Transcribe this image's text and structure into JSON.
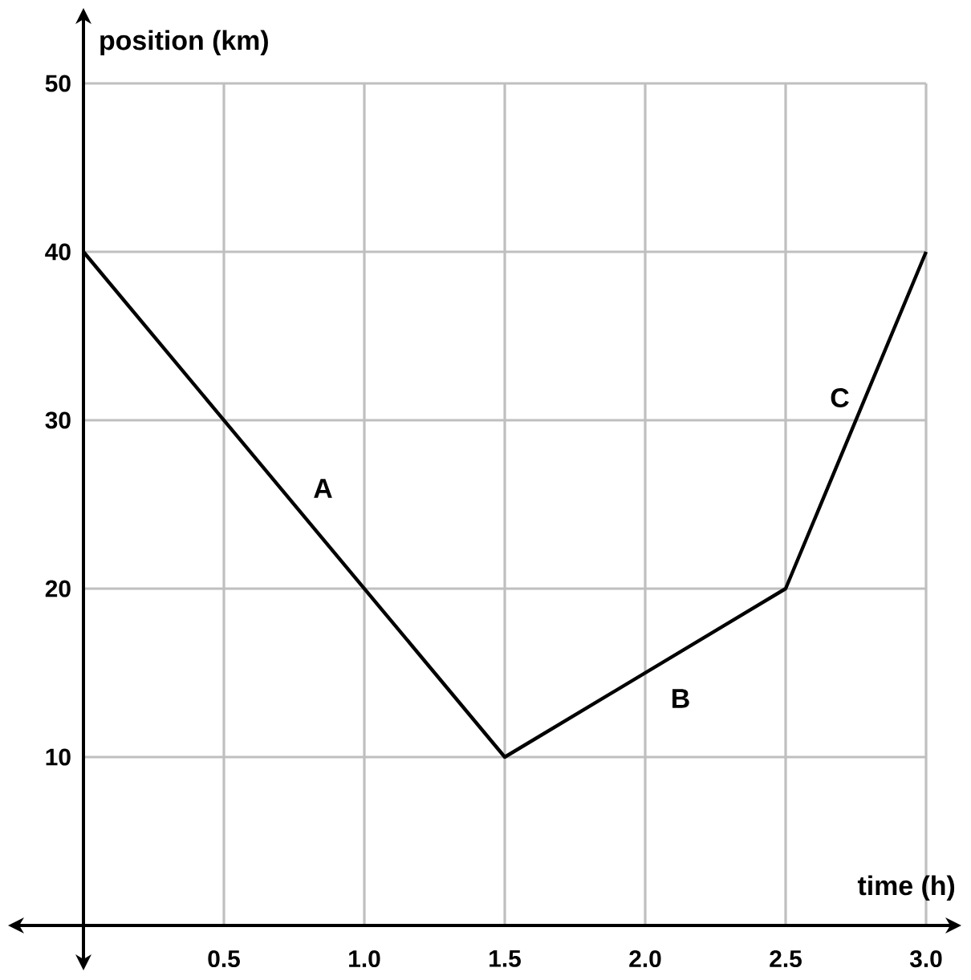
{
  "chart_data": {
    "type": "line",
    "xlabel": "time (h)",
    "ylabel": "position (km)",
    "x": [
      0,
      1.5,
      2.5,
      3
    ],
    "series": [
      {
        "color": "#000000",
        "values": [
          40,
          10,
          20,
          40
        ]
      }
    ],
    "xlim": [
      0,
      3
    ],
    "ylim": [
      0,
      50
    ],
    "xticks": [
      {
        "value": 0,
        "label": null
      },
      0.5,
      {
        "value": 1,
        "label": "1.0"
      },
      1.5,
      {
        "value": 2,
        "label": "2.0"
      },
      2.5,
      {
        "value": 3,
        "label": "3.0"
      }
    ],
    "yticks": [
      {
        "value": 0,
        "label": null
      },
      10,
      20,
      30,
      40,
      50
    ],
    "annotations": [
      "A",
      "B",
      "C"
    ],
    "grid": true,
    "marker": "none",
    "line_style": "solid"
  }
}
